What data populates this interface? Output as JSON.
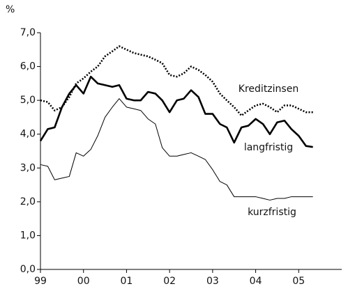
{
  "chart_data": {
    "type": "line",
    "ylabel": "%",
    "x": [
      1999,
      1999.17,
      1999.33,
      1999.5,
      1999.67,
      1999.83,
      2000,
      2000.17,
      2000.33,
      2000.5,
      2000.67,
      2000.83,
      2001,
      2001.17,
      2001.33,
      2001.5,
      2001.67,
      2001.83,
      2002,
      2002.17,
      2002.33,
      2002.5,
      2002.67,
      2002.83,
      2003,
      2003.17,
      2003.33,
      2003.5,
      2003.67,
      2003.83,
      2004,
      2004.17,
      2004.33,
      2004.5,
      2004.67,
      2004.83,
      2005,
      2005.17,
      2005.33
    ],
    "series": [
      {
        "name": "Kreditzinsen",
        "color": "#000000",
        "style": "dotted",
        "values": [
          5.0,
          4.95,
          4.7,
          4.8,
          5.1,
          5.5,
          5.65,
          5.85,
          6.0,
          6.3,
          6.45,
          6.6,
          6.5,
          6.4,
          6.35,
          6.3,
          6.2,
          6.1,
          5.75,
          5.7,
          5.8,
          6.0,
          5.9,
          5.75,
          5.55,
          5.2,
          5.0,
          4.8,
          4.55,
          4.7,
          4.85,
          4.9,
          4.8,
          4.65,
          4.85,
          4.85,
          4.75,
          4.65,
          4.65
        ]
      },
      {
        "name": "langfristig",
        "color": "#000000",
        "style": "bold",
        "values": [
          3.8,
          4.15,
          4.2,
          4.8,
          5.2,
          5.45,
          5.2,
          5.7,
          5.5,
          5.45,
          5.4,
          5.45,
          5.05,
          5.0,
          5.0,
          5.25,
          5.2,
          5.0,
          4.65,
          5.0,
          5.05,
          5.3,
          5.1,
          4.6,
          4.6,
          4.3,
          4.2,
          3.75,
          4.2,
          4.25,
          4.45,
          4.3,
          4.0,
          4.35,
          4.4,
          4.15,
          3.95,
          3.65,
          3.62
        ]
      },
      {
        "name": "kurzfristig",
        "color": "#000000",
        "style": "thin",
        "values": [
          3.1,
          3.05,
          2.65,
          2.7,
          2.75,
          3.45,
          3.35,
          3.55,
          3.95,
          4.5,
          4.8,
          5.05,
          4.8,
          4.75,
          4.7,
          4.45,
          4.3,
          3.6,
          3.35,
          3.35,
          3.4,
          3.45,
          3.35,
          3.25,
          2.95,
          2.6,
          2.5,
          2.15,
          2.15,
          2.15,
          2.15,
          2.1,
          2.05,
          2.1,
          2.1,
          2.15,
          2.15,
          2.15,
          2.15
        ]
      }
    ],
    "xlim": [
      1999,
      2006
    ],
    "xticks": [
      {
        "value": 1999,
        "label": "99"
      },
      {
        "value": 2000,
        "label": "00"
      },
      {
        "value": 2001,
        "label": "01"
      },
      {
        "value": 2002,
        "label": "02"
      },
      {
        "value": 2003,
        "label": "03"
      },
      {
        "value": 2004,
        "label": "04"
      },
      {
        "value": 2005,
        "label": "05"
      }
    ],
    "ylim": [
      0,
      7
    ],
    "yticks": [
      {
        "value": 0,
        "label": "0,0"
      },
      {
        "value": 1,
        "label": "1,0"
      },
      {
        "value": 2,
        "label": "2,0"
      },
      {
        "value": 3,
        "label": "3,0"
      },
      {
        "value": 4,
        "label": "4,0"
      },
      {
        "value": 5,
        "label": "5,0"
      },
      {
        "value": 6,
        "label": "6,0"
      },
      {
        "value": 7,
        "label": "7,0"
      }
    ],
    "grid": false
  }
}
